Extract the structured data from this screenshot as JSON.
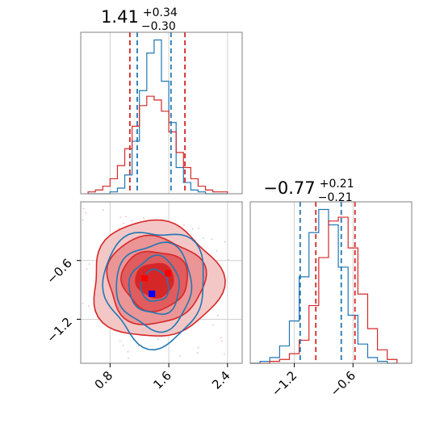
{
  "chart_data": [
    {
      "type": "histogram",
      "panel": "marginal-param-1",
      "title": {
        "median": "1.41",
        "plus": "+0.34",
        "minus": "−0.30"
      },
      "xlim": [
        0.4,
        2.6
      ],
      "grid": true,
      "series": [
        {
          "color": "#1f77b4",
          "bins_center": [
            0.55,
            0.65,
            0.75,
            0.85,
            0.95,
            1.05,
            1.15,
            1.25,
            1.35,
            1.45,
            1.55,
            1.65,
            1.75,
            1.85,
            1.95,
            2.05,
            2.15,
            2.25,
            2.35
          ],
          "counts": [
            0,
            0,
            0,
            1,
            3,
            10,
            28,
            55,
            75,
            82,
            60,
            38,
            14,
            6,
            2,
            1,
            0,
            0,
            0
          ],
          "quantiles": [
            1.17,
            1.63
          ]
        },
        {
          "color": "#d62728",
          "bins_center": [
            0.55,
            0.65,
            0.75,
            0.85,
            0.95,
            1.05,
            1.15,
            1.25,
            1.35,
            1.45,
            1.55,
            1.65,
            1.75,
            1.85,
            1.95,
            2.05,
            2.15,
            2.25,
            2.35
          ],
          "counts": [
            1,
            2,
            4,
            8,
            15,
            24,
            36,
            47,
            52,
            50,
            44,
            33,
            22,
            14,
            8,
            4,
            2,
            1,
            1
          ],
          "quantiles": [
            1.07,
            1.82
          ]
        }
      ]
    },
    {
      "type": "histogram",
      "panel": "marginal-param-2",
      "title": {
        "median": "−0.77",
        "plus": "+0.21",
        "minus": "−0.21"
      },
      "xlim": [
        -1.65,
        0.0
      ],
      "ticks": [
        "−1.2",
        "−0.6"
      ],
      "tick_values": [
        -1.2,
        -0.6
      ],
      "grid": true,
      "series": [
        {
          "color": "#1f77b4",
          "bins_center": [
            -1.6,
            -1.5,
            -1.4,
            -1.3,
            -1.2,
            -1.1,
            -1.0,
            -0.9,
            -0.8,
            -0.7,
            -0.6,
            -0.5,
            -0.4,
            -0.3,
            -0.2
          ],
          "counts": [
            0,
            1,
            3,
            9,
            22,
            45,
            68,
            80,
            72,
            50,
            25,
            10,
            3,
            1,
            0
          ],
          "quantiles": [
            -1.14,
            -0.72
          ]
        },
        {
          "color": "#d62728",
          "bins_center": [
            -1.6,
            -1.5,
            -1.4,
            -1.3,
            -1.2,
            -1.1,
            -1.0,
            -0.9,
            -0.8,
            -0.7,
            -0.6,
            -0.5,
            -0.4,
            -0.3,
            -0.2
          ],
          "counts": [
            0,
            0,
            1,
            2,
            5,
            12,
            30,
            55,
            74,
            76,
            60,
            36,
            18,
            7,
            2
          ],
          "quantiles": [
            -0.98,
            -0.58
          ]
        }
      ]
    },
    {
      "type": "contour",
      "panel": "joint",
      "xlim": [
        0.4,
        2.6
      ],
      "ylim": [
        -1.65,
        0.0
      ],
      "x_ticks": [
        "0.8",
        "1.6",
        "2.4"
      ],
      "x_tick_values": [
        0.8,
        1.6,
        2.4
      ],
      "y_ticks": [
        "−0.6",
        "−1.2"
      ],
      "y_tick_values": [
        -0.6,
        -1.2
      ],
      "series": [
        {
          "color": "#1f77b4",
          "center": [
            1.41,
            -0.86
          ],
          "spread": [
            0.36,
            0.28
          ]
        },
        {
          "color": "#d62728",
          "center": [
            1.41,
            -0.8
          ],
          "spread": [
            0.55,
            0.34
          ]
        }
      ],
      "markers": [
        {
          "color": "#ff0000",
          "x": 1.27,
          "y": -0.78
        },
        {
          "color": "#ff0000",
          "x": 1.59,
          "y": -0.73
        },
        {
          "color": "#0000ff",
          "x": 1.37,
          "y": -0.94
        }
      ]
    }
  ]
}
